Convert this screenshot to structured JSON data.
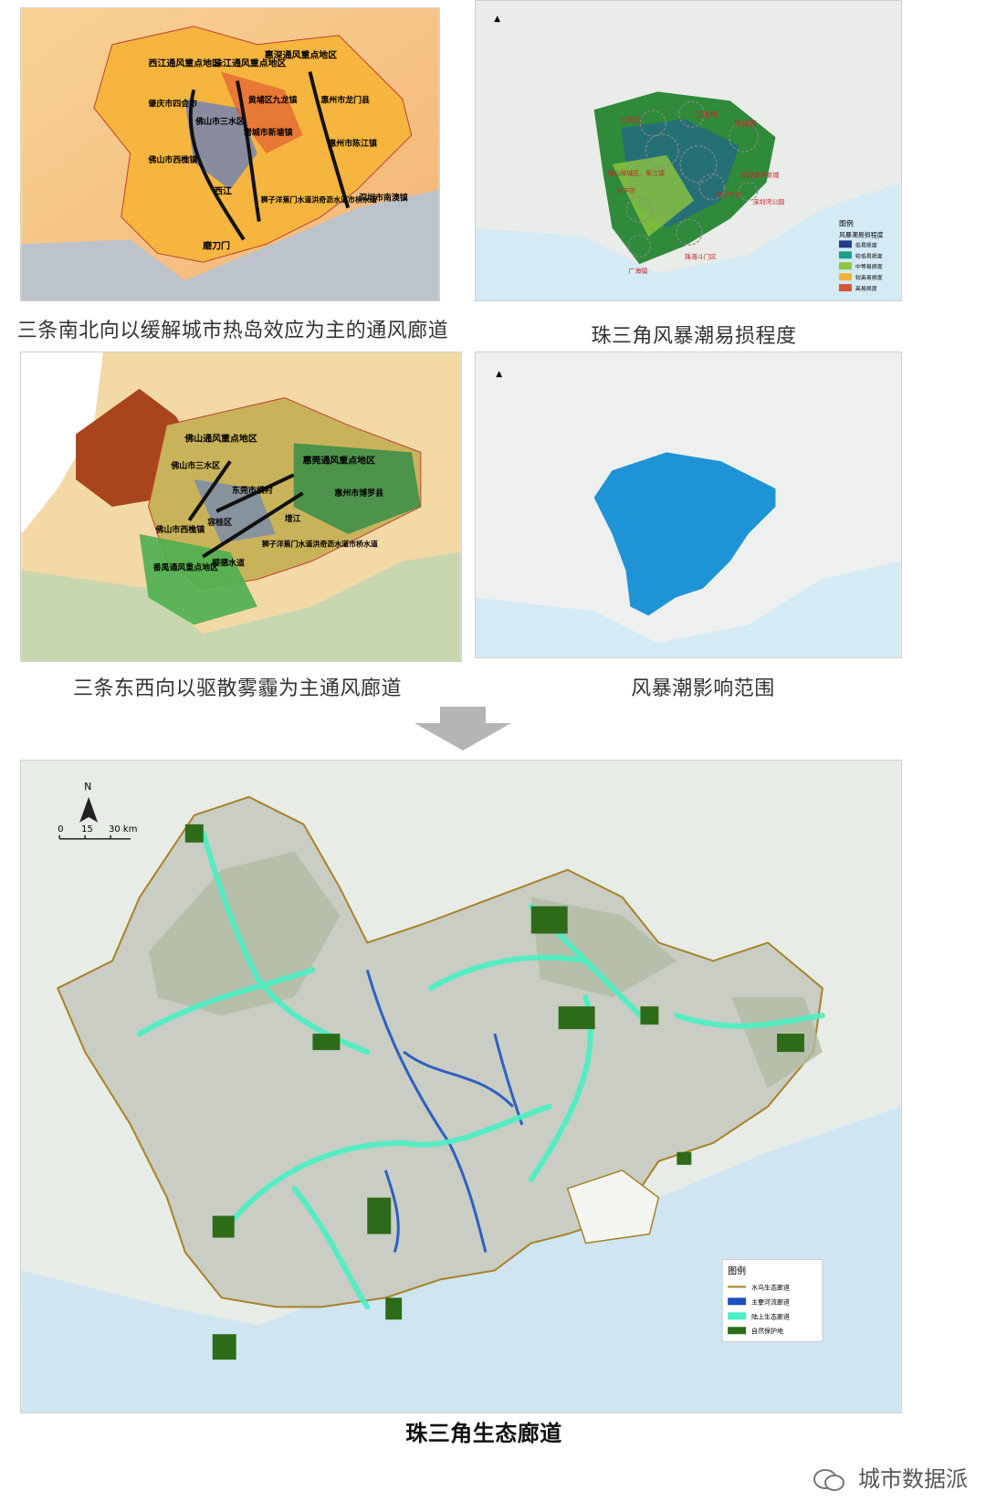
{
  "panels": {
    "p1": {
      "caption": "三条南北向以缓解城市热岛效应为主的通风廊道",
      "labels": [
        "西江通风重点地区",
        "珠江通风重点地区",
        "惠深通风重点地区",
        "肇庆市四会市",
        "佛山市三水区",
        "黄埔区九龙镇",
        "惠州市龙门县",
        "增城市新塘镇",
        "惠州市陈江镇",
        "佛山市西樵镇",
        "西江",
        "狮子洋蕉门水道洪奇沥水道市桥水道",
        "深圳市南澳镇",
        "磨刀门"
      ]
    },
    "p2": {
      "caption": "珠三角风暴潮易损程度",
      "labels": [
        "三水区",
        "江南镇",
        "新塘镇",
        "佛山禅城区、荣江镇",
        "开平市",
        "深圳海洋新城",
        "南沙片区",
        "深圳湾公园",
        "珠海斗门区",
        "广海镇"
      ],
      "legend_title": "图例",
      "legend_subtitle": "风暴潮易损程度",
      "legend_items": [
        "低易损度",
        "较低易损度",
        "中等易损度",
        "较高易损度",
        "高易损度"
      ]
    },
    "p3": {
      "caption": "三条东西向以驱散雾霾为主通风廊道",
      "labels": [
        "佛山通风重点地区",
        "惠莞通风重点地区",
        "佛山市三水区",
        "东莞市横村",
        "惠州市博罗县",
        "容桂区",
        "增江",
        "佛山市西樵镇",
        "番禺通风重点地区",
        "狮子洋蕉门水道洪奇沥水道市桥水道",
        "顺德水道"
      ]
    },
    "p4": {
      "caption": "风暴潮影响范围"
    },
    "main": {
      "title": "珠三角生态廊道",
      "scale": [
        "0",
        "15",
        "30 km"
      ],
      "north": "N",
      "legend_title": "图例",
      "legend_items": [
        "水鸟生态廊道",
        "主要河流廊道",
        "陆上生态廊道",
        "自然保护地"
      ]
    }
  },
  "watermark": "城市数据派",
  "colors": {
    "sea": "#cde6f1",
    "land": "#c9cdc4",
    "corridor": "#49f0c4",
    "reserve": "#2d6b19",
    "river": "#2f5fbf",
    "boundary": "#a8822a",
    "storm": "#1e94d6"
  }
}
